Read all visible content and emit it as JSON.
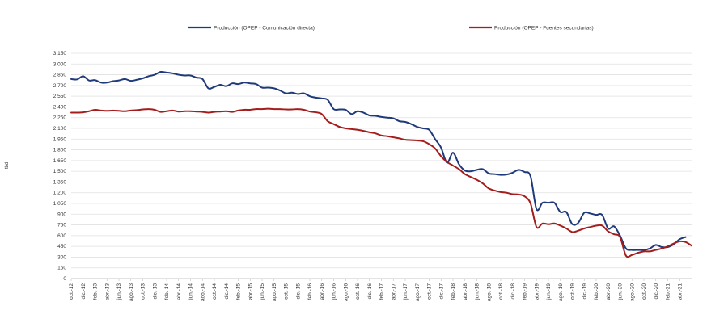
{
  "chart_data": {
    "type": "line",
    "title": "",
    "xlabel": "",
    "ylabel": "tbd",
    "ylim": [
      0,
      3150
    ],
    "yticks": [
      0,
      150,
      300,
      450,
      600,
      750,
      900,
      1050,
      1200,
      1350,
      1500,
      1650,
      1800,
      1950,
      2100,
      2250,
      2400,
      2550,
      2700,
      2850,
      3000,
      3150
    ],
    "ytick_labels": [
      "0",
      "150",
      "300",
      "450",
      "600",
      "750",
      "900",
      "1.050",
      "1.200",
      "1.350",
      "1.500",
      "1.650",
      "1.800",
      "1.950",
      "2.100",
      "2.250",
      "2.400",
      "2.550",
      "2.700",
      "2.850",
      "3.000",
      "3.150"
    ],
    "grid": true,
    "legend_position": "top",
    "x_tick_labels": [
      "oct.-12",
      "dic.-12",
      "feb.-13",
      "abr.-13",
      "jun.-13",
      "ago.-13",
      "oct.-13",
      "dic.-13",
      "feb.-14",
      "abr.-14",
      "jun.-14",
      "ago.-14",
      "oct.-14",
      "dic.-14",
      "feb.-15",
      "abr.-15",
      "jun.-15",
      "ago.-15",
      "oct.-15",
      "dic.-15",
      "feb.-16",
      "abr.-16",
      "jun.-16",
      "ago.-16",
      "oct.-16",
      "dic.-16",
      "feb.-17",
      "abr.-17",
      "jun.-17",
      "ago.-17",
      "oct.-17",
      "dic.-17",
      "feb.-18",
      "abr.-18",
      "jun.-18",
      "ago.-18",
      "oct.-18",
      "dic.-18",
      "feb.-19",
      "abr.-19",
      "jun.-19",
      "ago.-19",
      "oct.-19",
      "dic.-19",
      "feb.-20",
      "abr.-20",
      "jun.-20",
      "ago.-20",
      "oct.-20",
      "dic.-20",
      "feb.-21",
      "abr.-21"
    ],
    "series": [
      {
        "name": "Producción (OPEP - Comunicación directa)",
        "color": "#1f3a7a",
        "values": [
          2790,
          2785,
          2830,
          2770,
          2775,
          2740,
          2740,
          2760,
          2770,
          2790,
          2765,
          2780,
          2800,
          2830,
          2850,
          2890,
          2880,
          2870,
          2850,
          2840,
          2840,
          2810,
          2790,
          2660,
          2680,
          2710,
          2690,
          2730,
          2720,
          2740,
          2730,
          2720,
          2670,
          2670,
          2660,
          2630,
          2590,
          2600,
          2580,
          2590,
          2550,
          2530,
          2520,
          2500,
          2370,
          2365,
          2360,
          2300,
          2340,
          2320,
          2280,
          2275,
          2260,
          2250,
          2240,
          2200,
          2190,
          2160,
          2120,
          2100,
          2080,
          1950,
          1830,
          1620,
          1760,
          1600,
          1510,
          1500,
          1520,
          1530,
          1470,
          1460,
          1450,
          1455,
          1480,
          1520,
          1490,
          1430,
          970,
          1060,
          1060,
          1060,
          930,
          930,
          760,
          780,
          920,
          910,
          890,
          890,
          700,
          730,
          600,
          420,
          400,
          400,
          400,
          420,
          470,
          440,
          440,
          480,
          550,
          580
        ],
        "x_start": 0,
        "x_end": 103
      },
      {
        "name": "Producción (OPEP - Fuentes secundarias)",
        "color": "#a51c1c",
        "values": [
          2320,
          2320,
          2325,
          2340,
          2360,
          2350,
          2345,
          2350,
          2345,
          2340,
          2350,
          2355,
          2365,
          2370,
          2360,
          2330,
          2340,
          2350,
          2335,
          2340,
          2340,
          2335,
          2330,
          2320,
          2330,
          2335,
          2340,
          2330,
          2350,
          2360,
          2360,
          2370,
          2370,
          2375,
          2370,
          2370,
          2365,
          2365,
          2370,
          2360,
          2335,
          2325,
          2300,
          2200,
          2160,
          2120,
          2100,
          2090,
          2080,
          2065,
          2045,
          2030,
          2000,
          1990,
          1975,
          1960,
          1940,
          1935,
          1930,
          1920,
          1880,
          1820,
          1710,
          1630,
          1580,
          1530,
          1460,
          1420,
          1380,
          1330,
          1260,
          1230,
          1210,
          1200,
          1180,
          1175,
          1150,
          1050,
          720,
          770,
          760,
          770,
          740,
          700,
          650,
          670,
          700,
          720,
          740,
          740,
          660,
          620,
          580,
          320,
          330,
          360,
          380,
          380,
          400,
          420,
          450,
          490,
          520,
          510,
          460
        ],
        "x_start": 0,
        "x_end": 104
      }
    ]
  }
}
